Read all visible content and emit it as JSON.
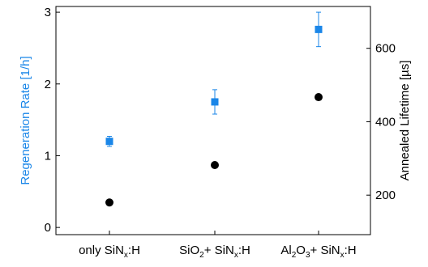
{
  "chart_data": {
    "type": "scatter",
    "title": "",
    "categories": [
      {
        "base": "only SiN",
        "sub": "x",
        "rest": ":H"
      },
      {
        "pre": "SiO",
        "pre_sub": "2",
        "mid": "+ SiN",
        "sub": "x",
        "rest": ":H"
      },
      {
        "pre": "Al",
        "pre_sub": "2",
        "pre2": "O",
        "pre2_sub": "3",
        "mid": "+ SiN",
        "sub": "x",
        "rest": ":H"
      }
    ],
    "y_left": {
      "label": "Regeneration Rate [1/h]",
      "color": "#1a86e8",
      "lim": [
        -0.1,
        3.08
      ],
      "ticks": [
        0,
        1,
        2,
        3
      ]
    },
    "y_right": {
      "label": "Annealed Lifetime [µs]",
      "color": "#000000",
      "lim": [
        92.4,
        714.0
      ],
      "ticks": [
        200,
        400,
        600
      ]
    },
    "series": [
      {
        "axis": "left",
        "marker": "square",
        "color": "#1a86e8",
        "values": [
          1.2,
          1.75,
          2.76
        ],
        "errors": [
          0.07,
          0.17,
          0.24
        ]
      },
      {
        "axis": "right",
        "marker": "circle",
        "color": "#000000",
        "values": [
          180,
          282,
          467
        ]
      }
    ]
  }
}
